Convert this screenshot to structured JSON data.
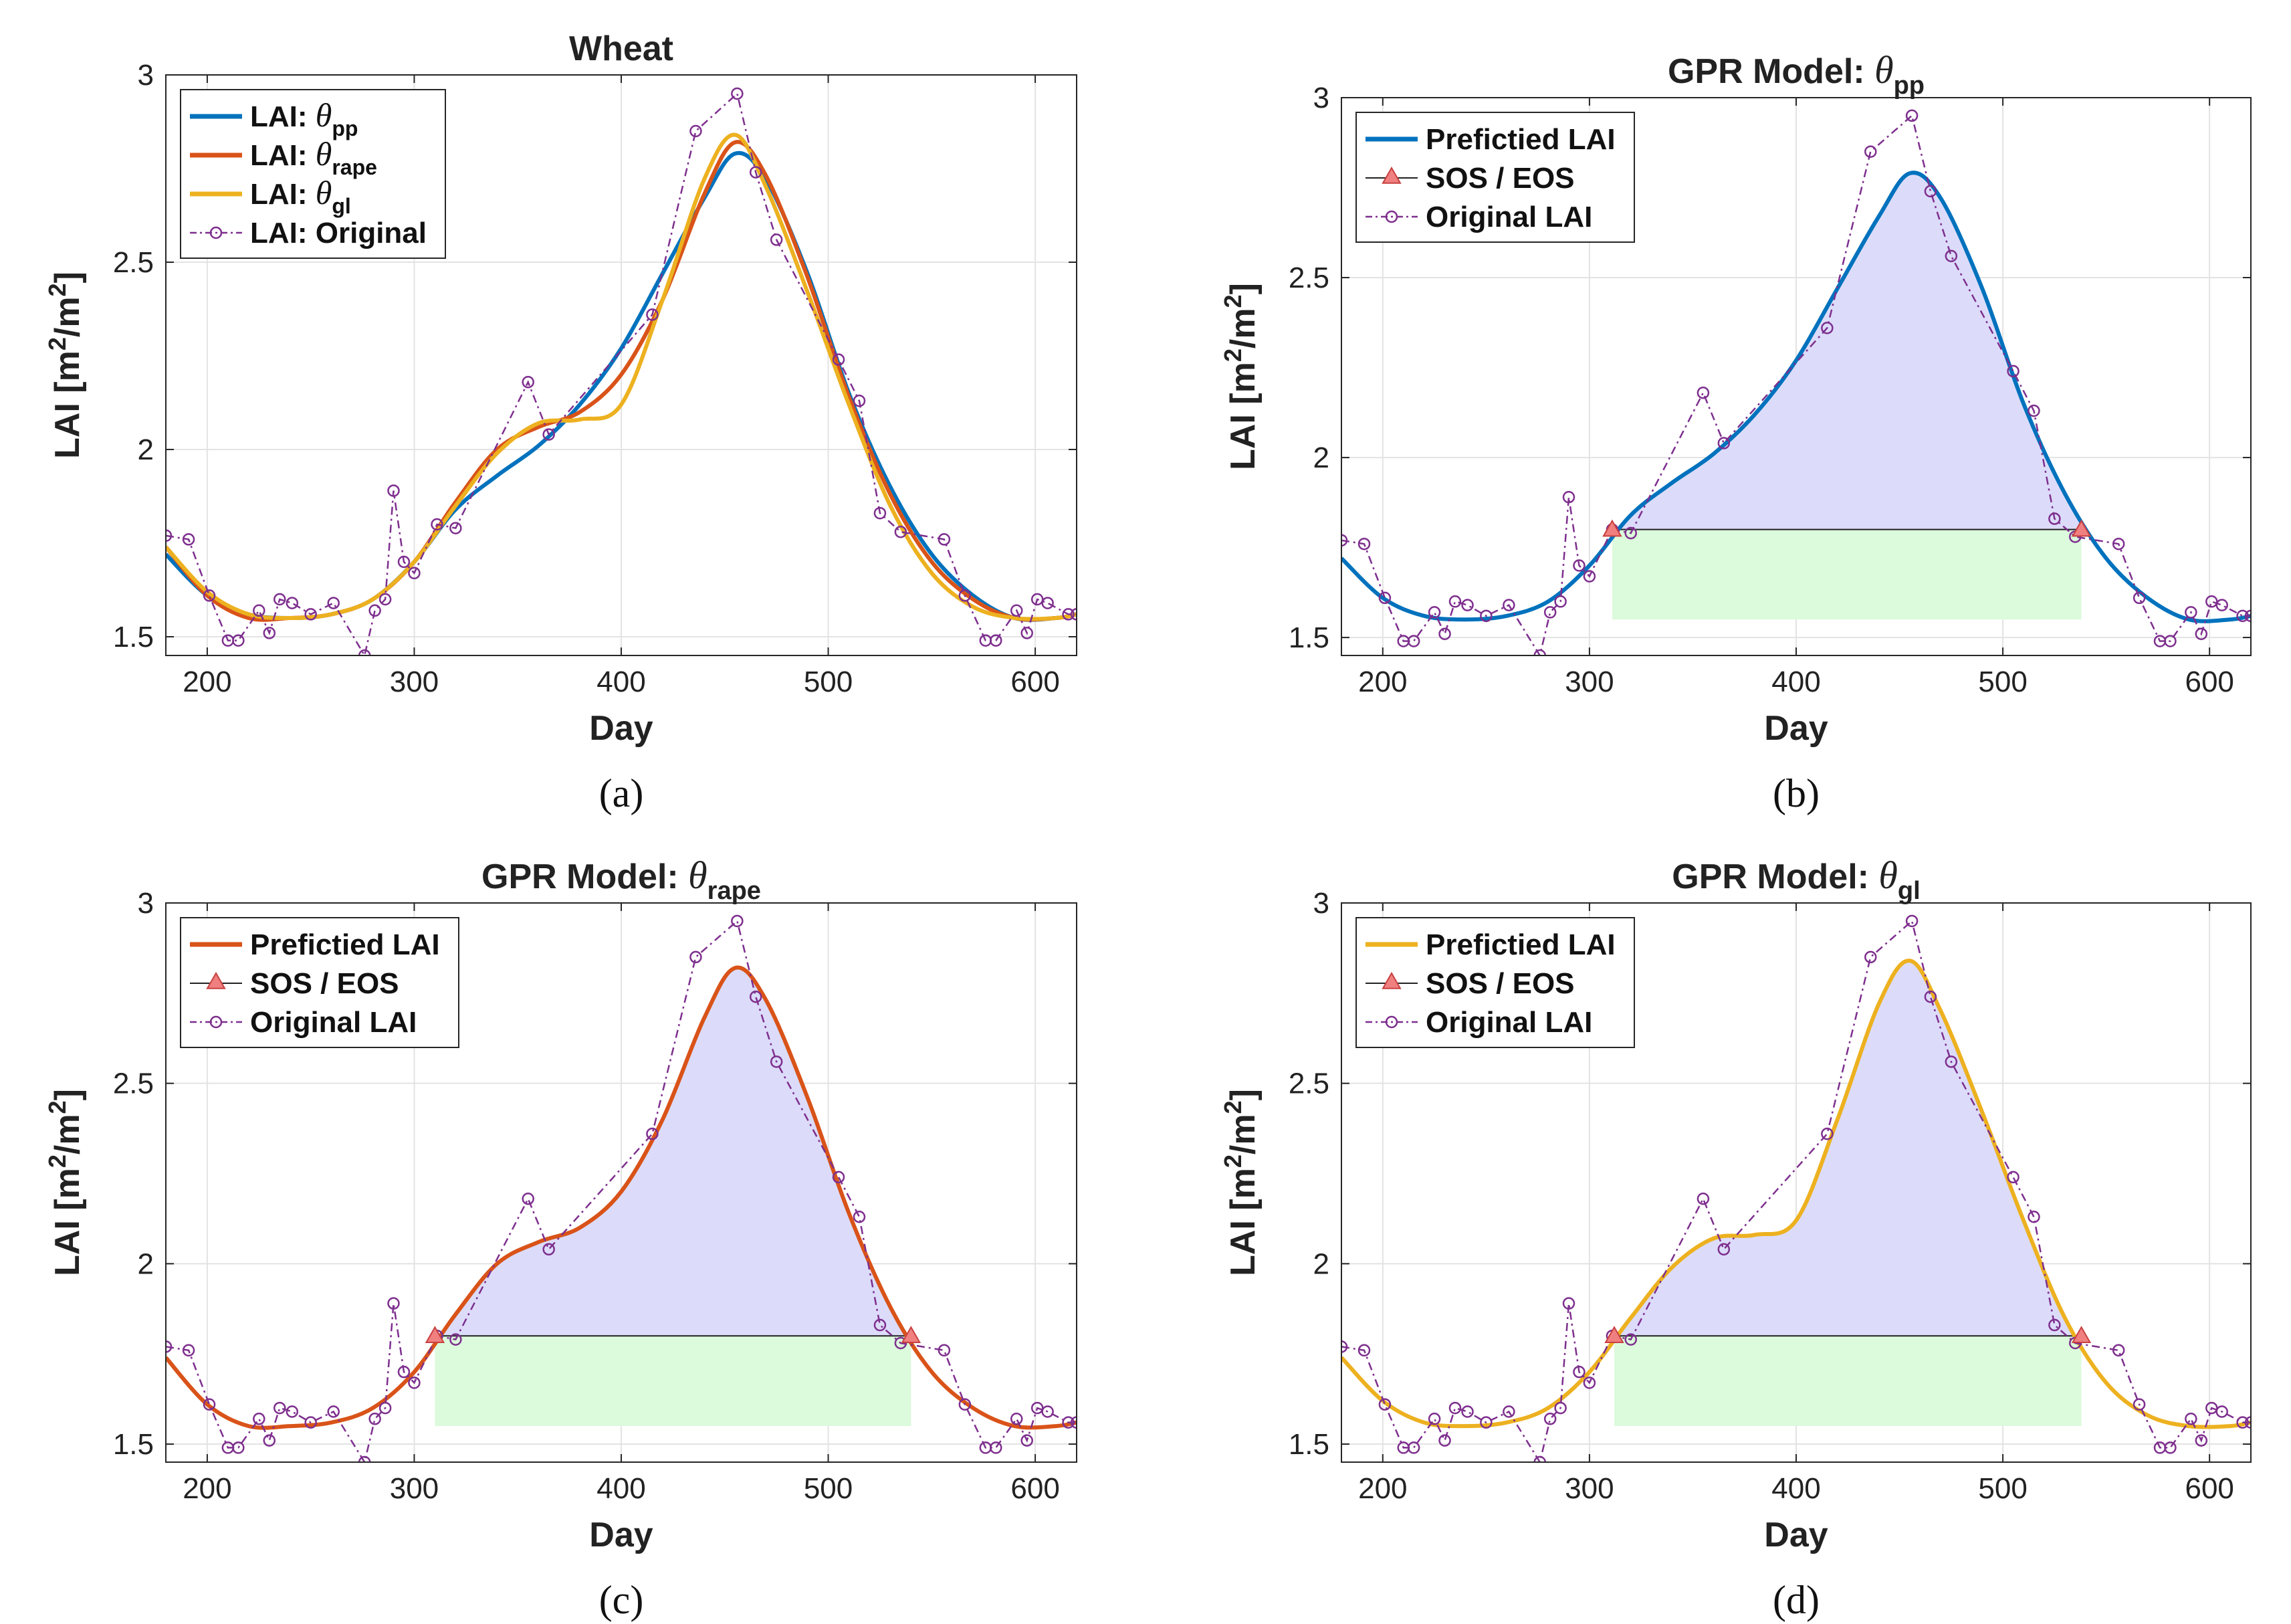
{
  "figure": {
    "panels_meta": [
      {
        "title_main": "Wheat",
        "title_symbol": "",
        "title_sub": "",
        "caption": "(a)"
      },
      {
        "title_main": "GPR Model: ",
        "title_symbol": "θ",
        "title_sub": "pp",
        "caption": "(b)"
      },
      {
        "title_main": "GPR Model: ",
        "title_symbol": "θ",
        "title_sub": "rape",
        "caption": "(c)"
      },
      {
        "title_main": "GPR Model: ",
        "title_symbol": "θ",
        "title_sub": "gl",
        "caption": "(d)"
      }
    ],
    "xlabel": "Day",
    "ylabel_main": "LAI [m",
    "ylabel_sup1": "2",
    "ylabel_mid": "/m",
    "ylabel_sup2": "2",
    "ylabel_end": "]"
  },
  "colors": {
    "pp": "#0072BD",
    "rape": "#D95319",
    "gl": "#EDB120",
    "original": "#7E2F8E",
    "season_fill": "#dcdcfa",
    "base_fill": "#dcfadc",
    "marker": "#f08080",
    "grid": "#e3e3e3"
  },
  "chart_data": [
    {
      "type": "line",
      "title": "Wheat",
      "xlabel": "Day",
      "ylabel": "LAI [m2/m2]",
      "xlim": [
        180,
        620
      ],
      "ylim": [
        1.45,
        3.0
      ],
      "xticks": [
        200,
        300,
        400,
        500,
        600
      ],
      "yticks": [
        1.5,
        2,
        2.5,
        3
      ],
      "grid": true,
      "legend_position": "top-left",
      "series": [
        {
          "name": "LAI: θpp",
          "name_main": "LAI: ",
          "name_sym": "θ",
          "name_sub": "pp",
          "color": "#0072BD",
          "style": "solid",
          "smooth": true,
          "x": [
            180,
            200,
            220,
            240,
            260,
            280,
            300,
            320,
            340,
            360,
            380,
            400,
            420,
            440,
            455,
            470,
            490,
            510,
            530,
            550,
            570,
            590,
            610,
            620
          ],
          "y": [
            1.72,
            1.61,
            1.56,
            1.55,
            1.56,
            1.6,
            1.7,
            1.84,
            1.93,
            2.01,
            2.12,
            2.27,
            2.47,
            2.67,
            2.79,
            2.72,
            2.47,
            2.15,
            1.9,
            1.72,
            1.61,
            1.55,
            1.55,
            1.56
          ]
        },
        {
          "name": "LAI: θrape",
          "name_main": "LAI: ",
          "name_sym": "θ",
          "name_sub": "rape",
          "color": "#D95319",
          "style": "solid",
          "smooth": true,
          "x": [
            180,
            200,
            220,
            240,
            260,
            280,
            300,
            320,
            340,
            360,
            380,
            400,
            420,
            440,
            455,
            470,
            490,
            510,
            530,
            550,
            570,
            590,
            610,
            620
          ],
          "y": [
            1.74,
            1.61,
            1.55,
            1.55,
            1.56,
            1.6,
            1.7,
            1.86,
            2.0,
            2.06,
            2.1,
            2.2,
            2.4,
            2.68,
            2.82,
            2.73,
            2.46,
            2.14,
            1.88,
            1.7,
            1.6,
            1.55,
            1.55,
            1.56
          ]
        },
        {
          "name": "LAI: θgl",
          "name_main": "LAI: ",
          "name_sym": "θ",
          "name_sub": "gl",
          "color": "#EDB120",
          "style": "solid",
          "smooth": true,
          "x": [
            180,
            200,
            220,
            240,
            260,
            280,
            300,
            320,
            340,
            360,
            380,
            400,
            420,
            440,
            455,
            470,
            490,
            510,
            530,
            550,
            570,
            590,
            610,
            620
          ],
          "y": [
            1.74,
            1.62,
            1.56,
            1.55,
            1.56,
            1.6,
            1.7,
            1.85,
            1.99,
            2.07,
            2.08,
            2.12,
            2.4,
            2.72,
            2.84,
            2.7,
            2.42,
            2.12,
            1.85,
            1.67,
            1.58,
            1.55,
            1.55,
            1.56
          ]
        },
        {
          "name": "LAI: Original",
          "name_main": "LAI: Original",
          "name_sym": "",
          "name_sub": "",
          "color": "#7E2F8E",
          "style": "dashdot",
          "marker": "circle",
          "x": [
            180,
            191,
            201,
            210,
            215,
            225,
            230,
            235,
            241,
            250,
            261,
            276,
            281,
            286,
            290,
            295,
            300,
            311,
            320,
            355,
            365,
            415,
            436,
            456,
            465,
            475,
            505,
            515,
            525,
            535,
            556,
            566,
            576,
            581,
            591,
            596,
            601,
            606,
            616,
            620
          ],
          "y": [
            1.77,
            1.76,
            1.61,
            1.49,
            1.49,
            1.57,
            1.51,
            1.6,
            1.59,
            1.56,
            1.59,
            1.45,
            1.57,
            1.6,
            1.89,
            1.7,
            1.67,
            1.8,
            1.79,
            2.18,
            2.04,
            2.36,
            2.85,
            2.95,
            2.74,
            2.56,
            2.24,
            2.13,
            1.83,
            1.78,
            1.76,
            1.61,
            1.49,
            1.49,
            1.57,
            1.51,
            1.6,
            1.59,
            1.56,
            1.56
          ]
        }
      ]
    },
    {
      "type": "line",
      "title": "GPR Model: θpp",
      "xlabel": "Day",
      "ylabel": "LAI [m2/m2]",
      "xlim": [
        180,
        620
      ],
      "ylim": [
        1.45,
        3.0
      ],
      "xticks": [
        200,
        300,
        400,
        500,
        600
      ],
      "yticks": [
        1.5,
        2,
        2.5,
        3
      ],
      "grid": true,
      "legend_position": "top-left",
      "sos": [
        311,
        1.8
      ],
      "eos": [
        538,
        1.8
      ],
      "base_band": [
        311,
        538,
        1.55,
        1.8
      ],
      "series": [
        {
          "name": "Prefictied LAI",
          "name_main": "Prefictied LAI",
          "color": "#0072BD",
          "style": "solid",
          "smooth": true,
          "fill_to_season": true,
          "x": [
            180,
            200,
            220,
            240,
            260,
            280,
            300,
            320,
            340,
            360,
            380,
            400,
            420,
            440,
            455,
            470,
            490,
            510,
            530,
            550,
            570,
            590,
            610,
            620
          ],
          "y": [
            1.72,
            1.61,
            1.56,
            1.55,
            1.56,
            1.6,
            1.7,
            1.84,
            1.93,
            2.01,
            2.12,
            2.27,
            2.47,
            2.67,
            2.79,
            2.72,
            2.47,
            2.15,
            1.9,
            1.72,
            1.61,
            1.55,
            1.55,
            1.56
          ]
        },
        {
          "name": "SOS / EOS",
          "name_main": "SOS / EOS",
          "color": "#f08080",
          "style": "marker",
          "marker": "triangle"
        },
        {
          "name": "Original LAI",
          "name_main": "Original LAI",
          "color": "#7E2F8E",
          "style": "dashdot",
          "marker": "circle",
          "x": [
            180,
            191,
            201,
            210,
            215,
            225,
            230,
            235,
            241,
            250,
            261,
            276,
            281,
            286,
            290,
            295,
            300,
            311,
            320,
            355,
            365,
            415,
            436,
            456,
            465,
            475,
            505,
            515,
            525,
            535,
            556,
            566,
            576,
            581,
            591,
            596,
            601,
            606,
            616,
            620
          ],
          "y": [
            1.77,
            1.76,
            1.61,
            1.49,
            1.49,
            1.57,
            1.51,
            1.6,
            1.59,
            1.56,
            1.59,
            1.45,
            1.57,
            1.6,
            1.89,
            1.7,
            1.67,
            1.8,
            1.79,
            2.18,
            2.04,
            2.36,
            2.85,
            2.95,
            2.74,
            2.56,
            2.24,
            2.13,
            1.83,
            1.78,
            1.76,
            1.61,
            1.49,
            1.49,
            1.57,
            1.51,
            1.6,
            1.59,
            1.56,
            1.56
          ]
        }
      ]
    },
    {
      "type": "line",
      "title": "GPR Model: θrape",
      "xlabel": "Day",
      "ylabel": "LAI [m2/m2]",
      "xlim": [
        180,
        620
      ],
      "ylim": [
        1.45,
        3.0
      ],
      "xticks": [
        200,
        300,
        400,
        500,
        600
      ],
      "yticks": [
        1.5,
        2,
        2.5,
        3
      ],
      "grid": true,
      "legend_position": "top-left",
      "sos": [
        310,
        1.8
      ],
      "eos": [
        540,
        1.8
      ],
      "base_band": [
        310,
        540,
        1.55,
        1.8
      ],
      "series": [
        {
          "name": "Prefictied LAI",
          "name_main": "Prefictied LAI",
          "color": "#D95319",
          "style": "solid",
          "smooth": true,
          "fill_to_season": true,
          "x": [
            180,
            200,
            220,
            240,
            260,
            280,
            300,
            320,
            340,
            360,
            380,
            400,
            420,
            440,
            455,
            470,
            490,
            510,
            530,
            550,
            570,
            590,
            610,
            620
          ],
          "y": [
            1.74,
            1.61,
            1.55,
            1.55,
            1.56,
            1.6,
            1.7,
            1.86,
            2.0,
            2.06,
            2.1,
            2.2,
            2.4,
            2.68,
            2.82,
            2.73,
            2.46,
            2.14,
            1.88,
            1.7,
            1.6,
            1.55,
            1.55,
            1.56
          ]
        },
        {
          "name": "SOS / EOS",
          "name_main": "SOS / EOS",
          "color": "#f08080",
          "style": "marker",
          "marker": "triangle"
        },
        {
          "name": "Original LAI",
          "name_main": "Original LAI",
          "color": "#7E2F8E",
          "style": "dashdot",
          "marker": "circle",
          "x": [
            180,
            191,
            201,
            210,
            215,
            225,
            230,
            235,
            241,
            250,
            261,
            276,
            281,
            286,
            290,
            295,
            300,
            311,
            320,
            355,
            365,
            415,
            436,
            456,
            465,
            475,
            505,
            515,
            525,
            535,
            556,
            566,
            576,
            581,
            591,
            596,
            601,
            606,
            616,
            620
          ],
          "y": [
            1.77,
            1.76,
            1.61,
            1.49,
            1.49,
            1.57,
            1.51,
            1.6,
            1.59,
            1.56,
            1.59,
            1.45,
            1.57,
            1.6,
            1.89,
            1.7,
            1.67,
            1.8,
            1.79,
            2.18,
            2.04,
            2.36,
            2.85,
            2.95,
            2.74,
            2.56,
            2.24,
            2.13,
            1.83,
            1.78,
            1.76,
            1.61,
            1.49,
            1.49,
            1.57,
            1.51,
            1.6,
            1.59,
            1.56,
            1.56
          ]
        }
      ]
    },
    {
      "type": "line",
      "title": "GPR Model: θgl",
      "xlabel": "Day",
      "ylabel": "LAI [m2/m2]",
      "xlim": [
        180,
        620
      ],
      "ylim": [
        1.45,
        3.0
      ],
      "xticks": [
        200,
        300,
        400,
        500,
        600
      ],
      "yticks": [
        1.5,
        2,
        2.5,
        3
      ],
      "grid": true,
      "legend_position": "top-left",
      "sos": [
        312,
        1.8
      ],
      "eos": [
        538,
        1.8
      ],
      "base_band": [
        312,
        538,
        1.55,
        1.8
      ],
      "series": [
        {
          "name": "Prefictied LAI",
          "name_main": "Prefictied LAI",
          "color": "#EDB120",
          "style": "solid",
          "smooth": true,
          "fill_to_season": true,
          "x": [
            180,
            200,
            220,
            240,
            260,
            280,
            300,
            320,
            340,
            360,
            380,
            400,
            420,
            440,
            455,
            470,
            490,
            510,
            530,
            550,
            570,
            590,
            610,
            620
          ],
          "y": [
            1.74,
            1.62,
            1.56,
            1.55,
            1.56,
            1.6,
            1.7,
            1.85,
            1.99,
            2.07,
            2.08,
            2.12,
            2.4,
            2.72,
            2.84,
            2.7,
            2.42,
            2.12,
            1.85,
            1.67,
            1.58,
            1.55,
            1.55,
            1.56
          ]
        },
        {
          "name": "SOS / EOS",
          "name_main": "SOS / EOS",
          "color": "#f08080",
          "style": "marker",
          "marker": "triangle"
        },
        {
          "name": "Original LAI",
          "name_main": "Original LAI",
          "color": "#7E2F8E",
          "style": "dashdot",
          "marker": "circle",
          "x": [
            180,
            191,
            201,
            210,
            215,
            225,
            230,
            235,
            241,
            250,
            261,
            276,
            281,
            286,
            290,
            295,
            300,
            311,
            320,
            355,
            365,
            415,
            436,
            456,
            465,
            475,
            505,
            515,
            525,
            535,
            556,
            566,
            576,
            581,
            591,
            596,
            601,
            606,
            616,
            620
          ],
          "y": [
            1.77,
            1.76,
            1.61,
            1.49,
            1.49,
            1.57,
            1.51,
            1.6,
            1.59,
            1.56,
            1.59,
            1.45,
            1.57,
            1.6,
            1.89,
            1.7,
            1.67,
            1.8,
            1.79,
            2.18,
            2.04,
            2.36,
            2.85,
            2.95,
            2.74,
            2.56,
            2.24,
            2.13,
            1.83,
            1.78,
            1.76,
            1.61,
            1.49,
            1.49,
            1.57,
            1.51,
            1.6,
            1.59,
            1.56,
            1.56
          ]
        }
      ]
    }
  ]
}
